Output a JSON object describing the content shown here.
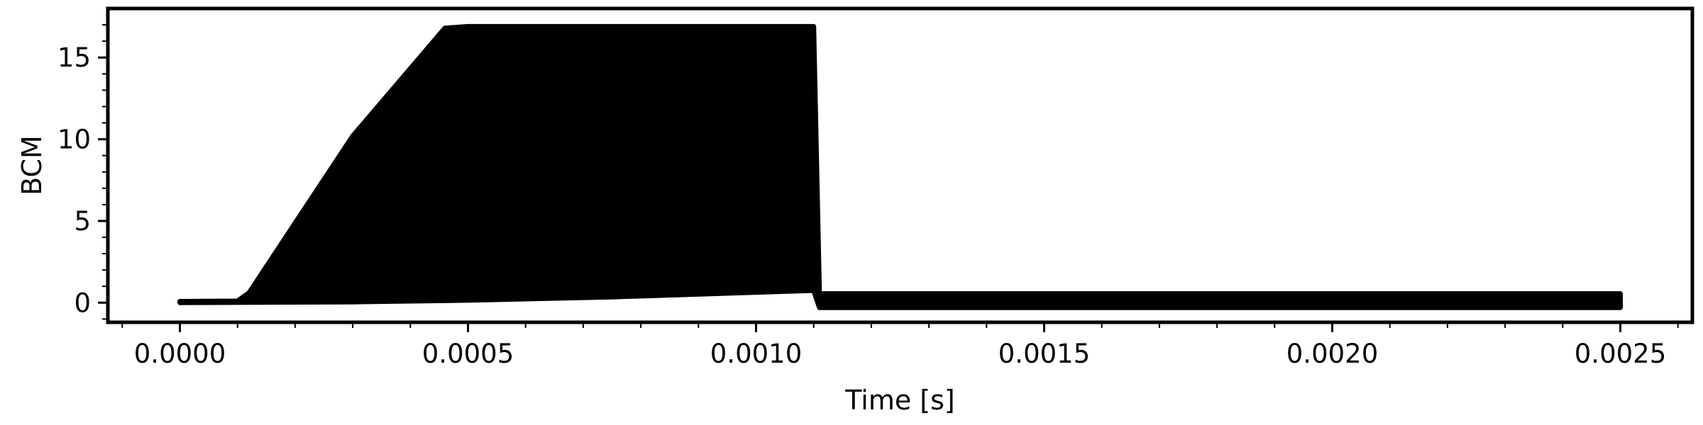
{
  "chart_data": {
    "type": "line",
    "title": "",
    "xlabel": "Time [s]",
    "ylabel": "BCM",
    "xlim": [
      -0.000125,
      0.002625
    ],
    "ylim": [
      -1.2,
      18
    ],
    "xticks": [
      0.0,
      0.0005,
      0.001,
      0.0015,
      0.002,
      0.0025
    ],
    "xtick_labels": [
      "0.0000",
      "0.0005",
      "0.0010",
      "0.0015",
      "0.0020",
      "0.0025"
    ],
    "yticks": [
      0,
      5,
      10,
      15
    ],
    "ytick_labels": [
      "0",
      "5",
      "10",
      "15"
    ],
    "grid": false,
    "series": [
      {
        "color": "#000000",
        "description_points": {
          "upper_envelope": {
            "x": [
              0.0,
              0.0001,
              0.00012,
              0.0003,
              0.00046,
              0.0005,
              0.0011,
              0.00111,
              0.0025
            ],
            "y": [
              0.08,
              0.1,
              0.6,
              10.2,
              16.8,
              16.9,
              16.9,
              0.55,
              0.55
            ]
          },
          "lower_envelope": {
            "x": [
              0.0,
              0.0003,
              0.0005,
              0.00075,
              0.0011,
              0.00111,
              0.0025
            ],
            "y": [
              0.0,
              0.05,
              0.15,
              0.35,
              0.75,
              -0.3,
              -0.3
            ]
          }
        }
      }
    ]
  }
}
